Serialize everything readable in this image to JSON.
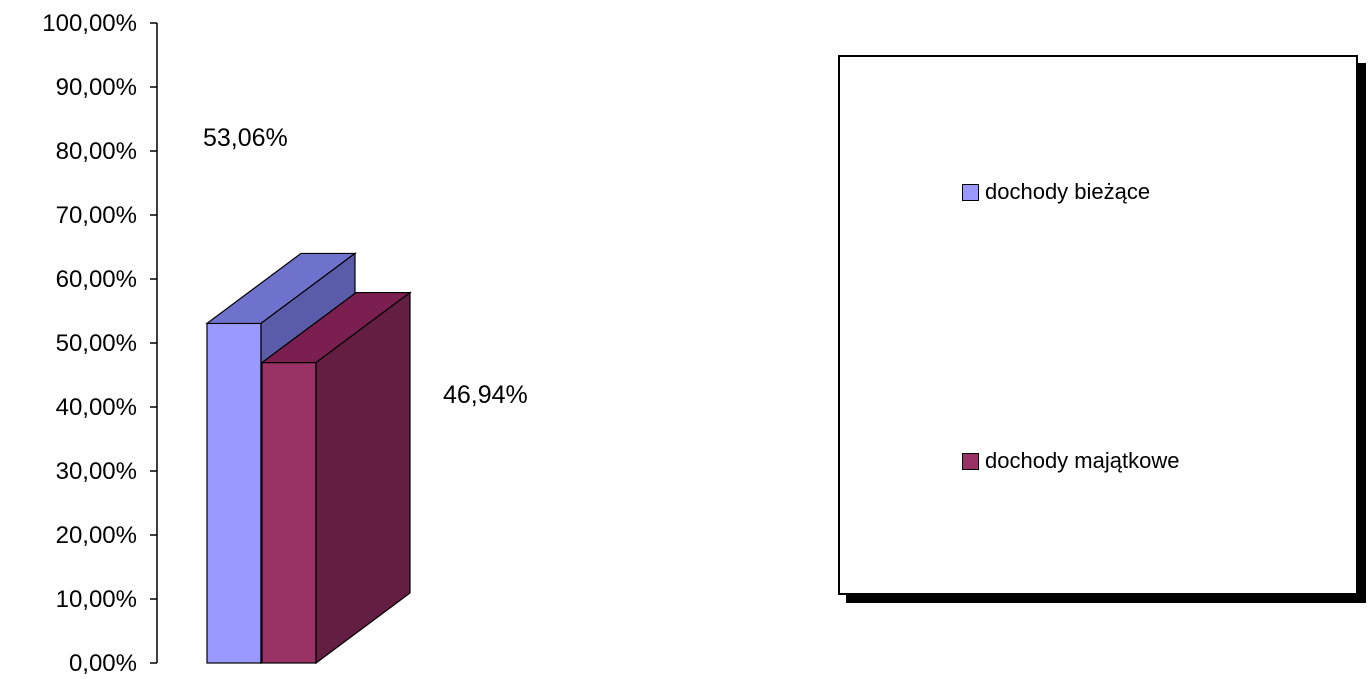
{
  "chart_data": {
    "type": "bar",
    "three_d": true,
    "categories": [
      ""
    ],
    "series": [
      {
        "name": "dochody bieżące",
        "values": [
          53.06
        ],
        "label": "53,06%",
        "color": "#9999ff",
        "top_color": "#6f72cc",
        "side_color": "#5a5caa"
      },
      {
        "name": "dochody majątkowe",
        "values": [
          46.94
        ],
        "label": "46,94%",
        "color": "#993366",
        "top_color": "#7a1f4f",
        "side_color": "#641e42"
      }
    ],
    "yticks": [
      "0,00%",
      "10,00%",
      "20,00%",
      "30,00%",
      "40,00%",
      "50,00%",
      "60,00%",
      "70,00%",
      "80,00%",
      "90,00%",
      "100,00%"
    ],
    "ylim": [
      0,
      100
    ],
    "grid": false,
    "legend_position": "right"
  }
}
